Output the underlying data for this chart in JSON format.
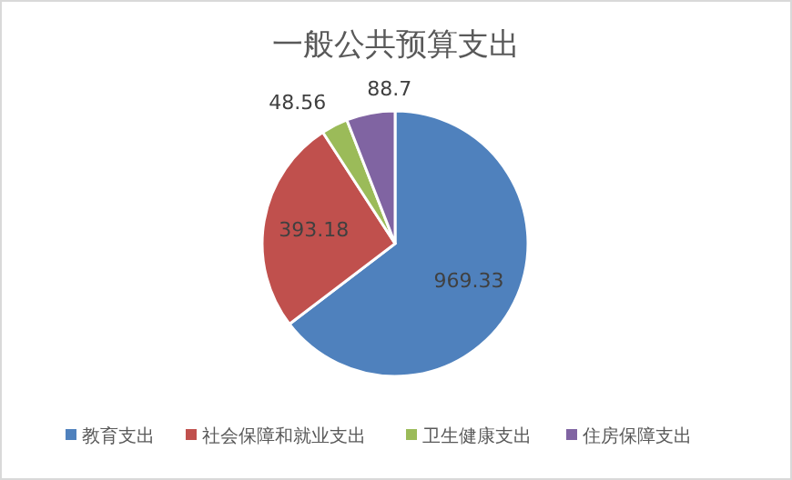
{
  "chart_data": {
    "type": "pie",
    "title": "一般公共预算支出",
    "categories": [
      "教育支出",
      "社会保障和就业支出",
      "卫生健康支出",
      "住房保障支出"
    ],
    "values": [
      969.33,
      393.18,
      48.56,
      88.7
    ],
    "colors": [
      "#4f81bd",
      "#c0504d",
      "#9bbb59",
      "#8064a2"
    ],
    "data_labels": true,
    "legend": "bottom"
  }
}
